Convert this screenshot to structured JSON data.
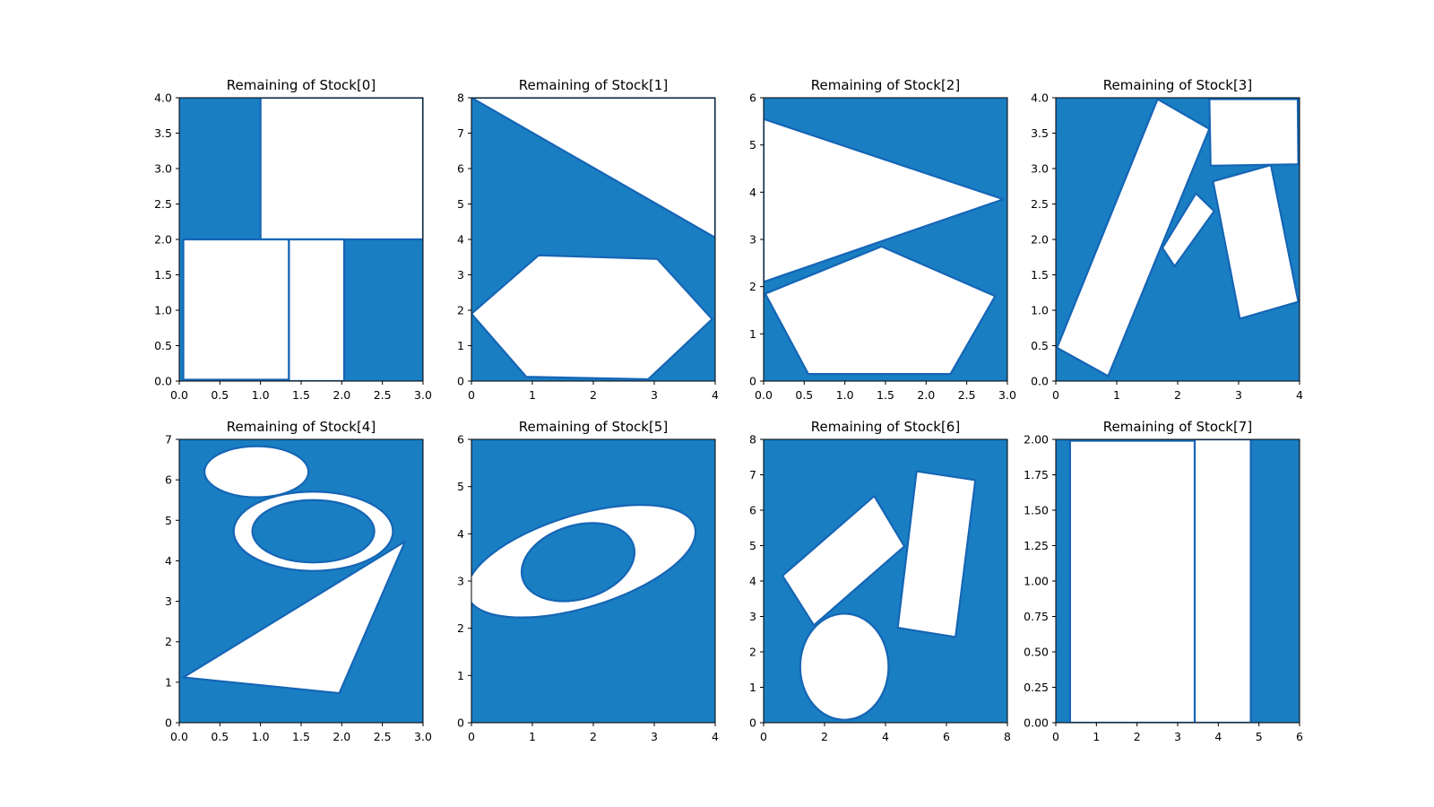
{
  "chart_data": [
    {
      "type": "area",
      "title": "Remaining of Stock[0]",
      "xlim": [
        0,
        3
      ],
      "ylim": [
        0,
        4
      ],
      "xticks": [
        "0.0",
        "0.5",
        "1.0",
        "1.5",
        "2.0",
        "2.5",
        "3.0"
      ],
      "yticks": [
        "0.0",
        "0.5",
        "1.0",
        "1.5",
        "2.0",
        "2.5",
        "3.0",
        "3.5",
        "4.0"
      ],
      "stock": [
        [
          0,
          0
        ],
        [
          3,
          0
        ],
        [
          3,
          4
        ],
        [
          0,
          4
        ]
      ],
      "cut_pieces": [
        [
          [
            1.0,
            2.0
          ],
          [
            1.0,
            4.0
          ],
          [
            3.0,
            4.0
          ],
          [
            3.0,
            2.0
          ]
        ],
        [
          [
            0.05,
            0.02
          ],
          [
            0.05,
            2.0
          ],
          [
            1.35,
            2.0
          ],
          [
            1.35,
            0.02
          ]
        ],
        [
          [
            1.35,
            0.0
          ],
          [
            1.35,
            2.0
          ],
          [
            2.03,
            2.0
          ],
          [
            2.03,
            0.0
          ]
        ]
      ]
    },
    {
      "type": "area",
      "title": "Remaining of Stock[1]",
      "xlim": [
        0,
        4
      ],
      "ylim": [
        0,
        8
      ],
      "xticks": [
        "0",
        "1",
        "2",
        "3",
        "4"
      ],
      "yticks": [
        "0",
        "1",
        "2",
        "3",
        "4",
        "5",
        "6",
        "7",
        "8"
      ],
      "stock": [
        [
          0,
          0
        ],
        [
          4,
          0
        ],
        [
          4,
          8
        ],
        [
          0,
          8
        ]
      ],
      "cut_pieces": [
        [
          [
            0,
            8
          ],
          [
            4,
            8
          ],
          [
            4,
            4.05
          ]
        ],
        [
          [
            0,
            1.9
          ],
          [
            1.1,
            3.55
          ],
          [
            3.05,
            3.45
          ],
          [
            3.95,
            1.75
          ],
          [
            2.9,
            0.05
          ],
          [
            0.9,
            0.12
          ]
        ]
      ]
    },
    {
      "type": "area",
      "title": "Remaining of Stock[2]",
      "xlim": [
        0,
        3
      ],
      "ylim": [
        0,
        6
      ],
      "xticks": [
        "0.0",
        "0.5",
        "1.0",
        "1.5",
        "2.0",
        "2.5",
        "3.0"
      ],
      "yticks": [
        "0",
        "1",
        "2",
        "3",
        "4",
        "5",
        "6"
      ],
      "stock": [
        [
          0,
          0
        ],
        [
          3,
          0
        ],
        [
          3,
          6
        ],
        [
          0,
          6
        ]
      ],
      "cut_pieces": [
        [
          [
            0,
            5.55
          ],
          [
            2.95,
            3.85
          ],
          [
            0,
            2.1
          ]
        ],
        [
          [
            0.02,
            1.85
          ],
          [
            1.45,
            2.85
          ],
          [
            2.85,
            1.8
          ],
          [
            2.3,
            0.15
          ],
          [
            0.55,
            0.15
          ]
        ]
      ]
    },
    {
      "type": "area",
      "title": "Remaining of Stock[3]",
      "xlim": [
        0,
        4
      ],
      "ylim": [
        0,
        4
      ],
      "xticks": [
        "0",
        "1",
        "2",
        "3",
        "4"
      ],
      "yticks": [
        "0.0",
        "0.5",
        "1.0",
        "1.5",
        "2.0",
        "2.5",
        "3.0",
        "3.5",
        "4.0"
      ],
      "stock": [
        [
          0,
          0
        ],
        [
          4,
          0
        ],
        [
          4,
          4
        ],
        [
          0,
          4
        ]
      ],
      "cut_pieces": [
        [
          [
            0.02,
            0.47
          ],
          [
            1.67,
            3.98
          ],
          [
            2.52,
            3.56
          ],
          [
            0.86,
            0.07
          ]
        ],
        [
          [
            2.52,
            3.98
          ],
          [
            3.97,
            3.98
          ],
          [
            3.98,
            3.06
          ],
          [
            2.54,
            3.04
          ]
        ],
        [
          [
            2.58,
            2.82
          ],
          [
            3.53,
            3.05
          ],
          [
            3.98,
            1.12
          ],
          [
            3.02,
            0.88
          ]
        ],
        [
          [
            1.75,
            1.88
          ],
          [
            2.3,
            2.65
          ],
          [
            2.6,
            2.4
          ],
          [
            1.95,
            1.62
          ]
        ]
      ]
    },
    {
      "type": "area",
      "title": "Remaining of Stock[4]",
      "xlim": [
        0,
        3
      ],
      "ylim": [
        0,
        7
      ],
      "xticks": [
        "0.0",
        "0.5",
        "1.0",
        "1.5",
        "2.0",
        "2.5",
        "3.0"
      ],
      "yticks": [
        "0",
        "1",
        "2",
        "3",
        "4",
        "5",
        "6",
        "7"
      ],
      "stock": [
        [
          0,
          0
        ],
        [
          3,
          0
        ],
        [
          3,
          7
        ],
        [
          0,
          7
        ]
      ],
      "cut_pieces": [
        {
          "ellipse": [
            0.95,
            6.2,
            0.64,
            0.63
          ]
        },
        {
          "ellipse": [
            1.65,
            4.73,
            0.98,
            0.98
          ],
          "hole": [
            1.65,
            4.73,
            0.75,
            0.77
          ]
        },
        [
          [
            0.05,
            1.12
          ],
          [
            2.78,
            4.48
          ],
          [
            1.97,
            0.73
          ]
        ]
      ]
    },
    {
      "type": "area",
      "title": "Remaining of Stock[5]",
      "xlim": [
        0,
        4
      ],
      "ylim": [
        0,
        6
      ],
      "xticks": [
        "0",
        "1",
        "2",
        "3",
        "4"
      ],
      "yticks": [
        "0",
        "1",
        "2",
        "3",
        "4",
        "5",
        "6"
      ],
      "stock": [
        [
          0,
          0
        ],
        [
          4,
          0
        ],
        [
          4,
          6
        ],
        [
          0,
          6
        ]
      ],
      "cut_pieces": [
        {
          "ellipse": [
            1.8,
            3.42,
            1.95,
            0.98
          ],
          "rotate": -17,
          "hole": [
            1.75,
            3.4,
            0.95,
            0.78
          ]
        }
      ]
    },
    {
      "type": "area",
      "title": "Remaining of Stock[6]",
      "xlim": [
        0,
        8
      ],
      "ylim": [
        0,
        8
      ],
      "xticks": [
        "0",
        "2",
        "4",
        "6",
        "8"
      ],
      "yticks": [
        "0",
        "1",
        "2",
        "3",
        "4",
        "5",
        "6",
        "7",
        "8"
      ],
      "stock": [
        [
          0,
          0
        ],
        [
          8,
          0
        ],
        [
          8,
          8
        ],
        [
          0,
          8
        ]
      ],
      "cut_pieces": [
        [
          [
            0.62,
            4.15
          ],
          [
            3.63,
            6.4
          ],
          [
            4.62,
            4.98
          ],
          [
            1.65,
            2.75
          ]
        ],
        [
          [
            5.02,
            7.1
          ],
          [
            6.95,
            6.85
          ],
          [
            6.3,
            2.42
          ],
          [
            4.4,
            2.68
          ]
        ],
        {
          "ellipse": [
            2.65,
            1.58,
            1.45,
            1.5
          ]
        }
      ]
    },
    {
      "type": "area",
      "title": "Remaining of Stock[7]",
      "xlim": [
        0,
        6
      ],
      "ylim": [
        0,
        2
      ],
      "xticks": [
        "0",
        "1",
        "2",
        "3",
        "4",
        "5",
        "6"
      ],
      "yticks": [
        "0.00",
        "0.25",
        "0.50",
        "0.75",
        "1.00",
        "1.25",
        "1.50",
        "1.75",
        "2.00"
      ],
      "stock": [
        [
          0,
          0
        ],
        [
          6,
          0
        ],
        [
          6,
          2
        ],
        [
          0,
          2
        ]
      ],
      "cut_pieces": [
        [
          [
            0.35,
            0
          ],
          [
            0.35,
            1.99
          ],
          [
            3.42,
            1.99
          ],
          [
            3.42,
            0
          ]
        ],
        [
          [
            3.42,
            0
          ],
          [
            3.42,
            2.0
          ],
          [
            4.8,
            2.0
          ],
          [
            4.8,
            0
          ]
        ]
      ]
    }
  ],
  "colors": {
    "remaining_fill": "#1a7ec3",
    "remaining_edge": "#1565b5",
    "cut_fill": "#ffffff"
  }
}
